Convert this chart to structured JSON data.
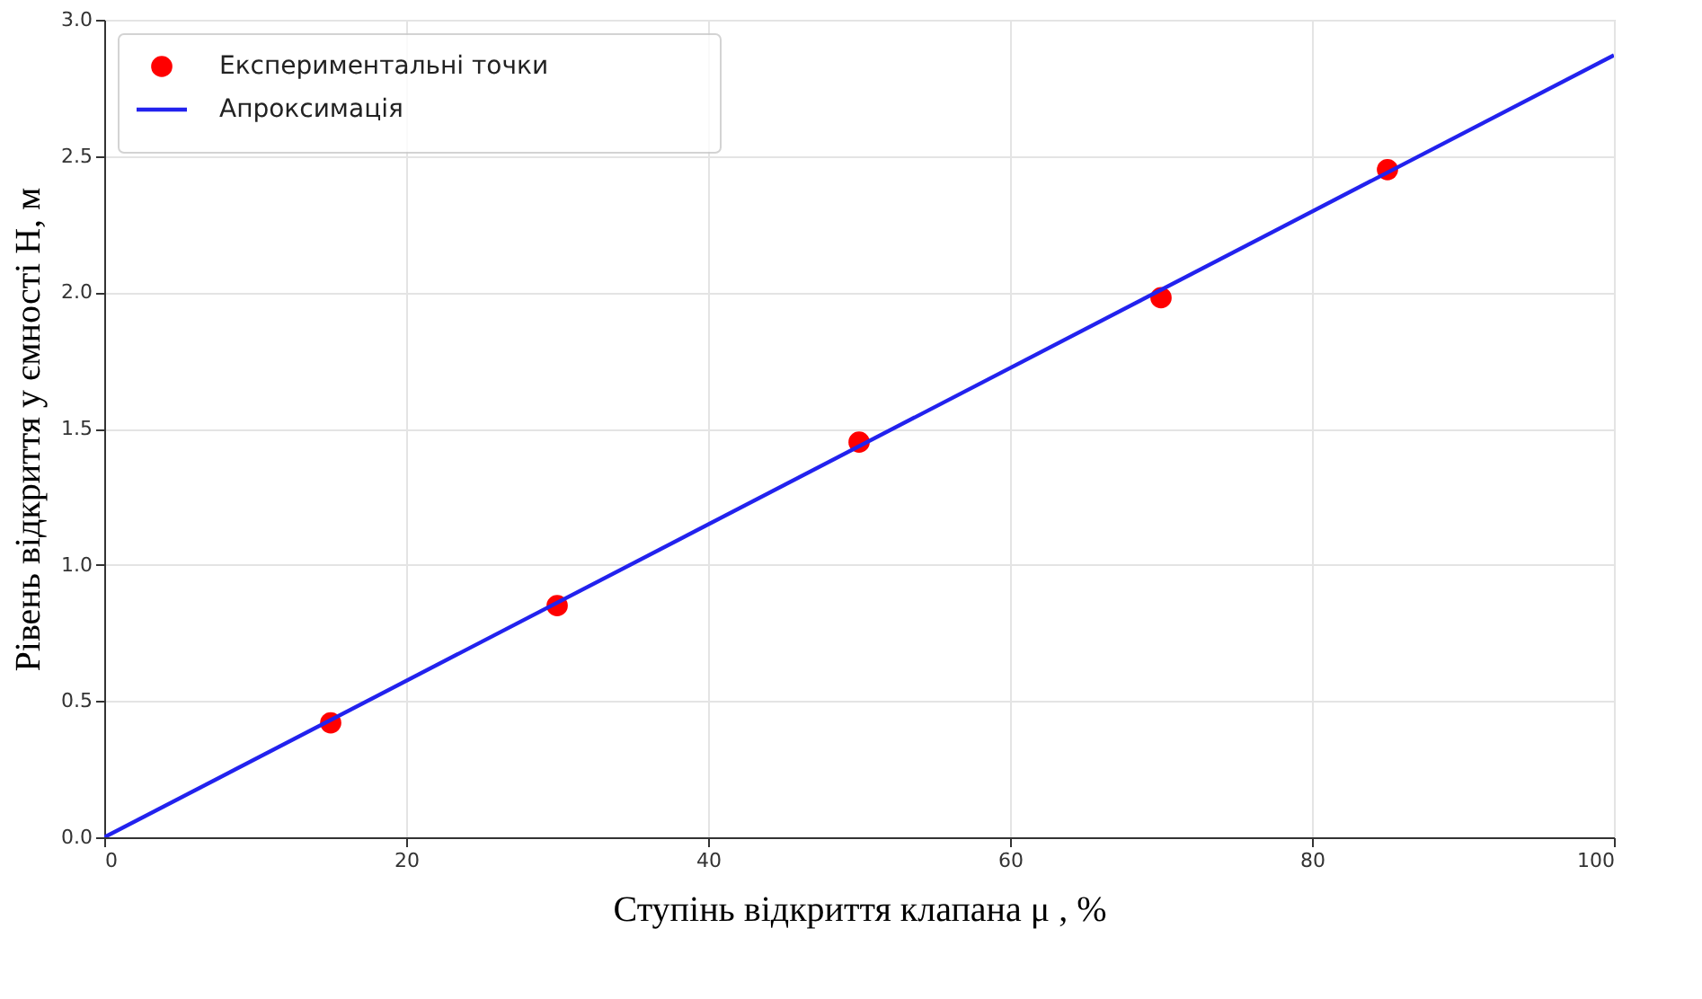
{
  "chart_data": {
    "type": "scatter",
    "xlabel": "Ступінь відкриття клапана  μ  , %",
    "ylabel": "Рівень відкриття у ємності H, м",
    "xlim": [
      0,
      100
    ],
    "xticks": [
      0,
      20,
      40,
      60,
      80,
      100
    ],
    "ylim": [
      0,
      3.0
    ],
    "yticks": [
      {
        "value": 0,
        "label": "0.0"
      },
      {
        "value": 0.5,
        "label": "0.5"
      },
      {
        "value": 1.0,
        "label": "1.0"
      },
      {
        "value": 1.5,
        "label": "1.5"
      },
      {
        "value": 2.0,
        "label": "2.0"
      },
      {
        "value": 2.5,
        "label": "2.5"
      },
      {
        "value": 3.0,
        "label": "3.0"
      }
    ],
    "grid": true,
    "legend": "top left",
    "series": [
      {
        "name": "Експериментальні точки",
        "color": "#ff0000",
        "marker": "circle",
        "x": [
          15,
          30,
          50,
          70,
          85
        ],
        "values": [
          0.42,
          0.85,
          1.45,
          1.98,
          2.45
        ]
      },
      {
        "name": "Апроксимація",
        "type": "line",
        "color": "#2222ee",
        "line_style": "solid",
        "x": [
          0,
          100
        ],
        "values": [
          0,
          2.87
        ]
      }
    ]
  }
}
